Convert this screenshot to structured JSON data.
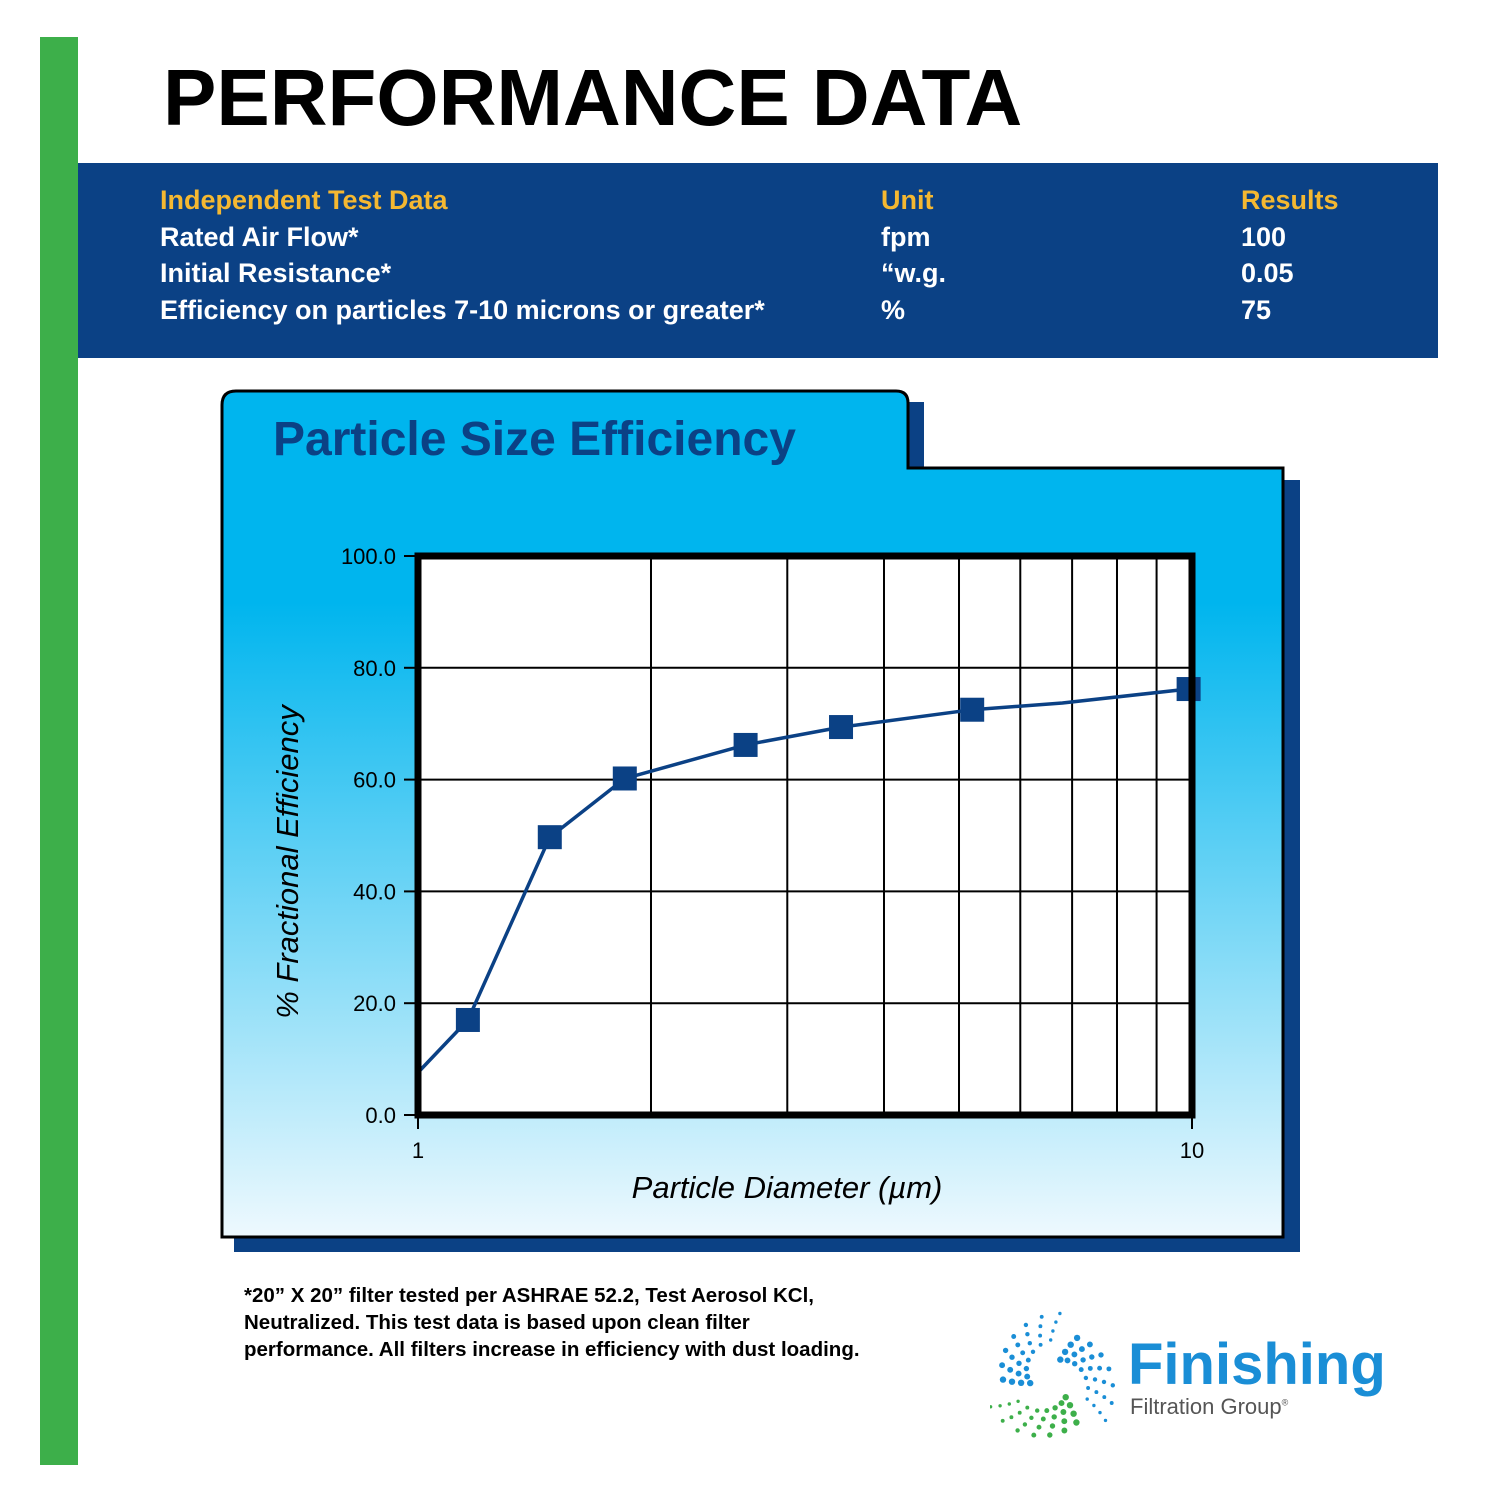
{
  "page_title": "PERFORMANCE DATA",
  "test_table": {
    "headers": [
      "Independent Test Data",
      "Unit",
      "Results"
    ],
    "rows": [
      [
        "Rated Air Flow*",
        "fpm",
        "100"
      ],
      [
        "Initial Resistance*",
        "“w.g.",
        "0.05"
      ],
      [
        "Efficiency on particles 7-10 microns or greater*",
        "%",
        "75"
      ]
    ]
  },
  "chart_data": {
    "type": "line",
    "title": "Particle Size Efficiency",
    "xlabel": "Particle Diameter (µm)",
    "ylabel": "% Fractional Efficiency",
    "x_scale": "log",
    "xlim": [
      1,
      10
    ],
    "ylim": [
      0,
      100
    ],
    "x_ticks": [
      1,
      10
    ],
    "x_tick_labels": [
      "1",
      "10"
    ],
    "y_ticks": [
      0,
      20,
      40,
      60,
      80,
      100
    ],
    "y_tick_labels": [
      "0.0",
      "20.0",
      "40.0",
      "60.0",
      "80.0",
      "100.0"
    ],
    "grid": true,
    "series": [
      {
        "x": [
          1,
          1.16,
          1.48,
          1.85,
          2.65,
          3.52,
          5.2,
          6.8,
          9.9
        ],
        "y": [
          7.6,
          17,
          49.7,
          60.2,
          66.2,
          69.4,
          72.5,
          73.7,
          76.2
        ],
        "marker_x": [
          1.16,
          1.48,
          1.85,
          2.65,
          3.52,
          5.2,
          9.9
        ],
        "marker_y": [
          17,
          49.7,
          60.2,
          66.2,
          69.4,
          72.5,
          76.2
        ],
        "color": "#0b4185"
      }
    ]
  },
  "footnote": "*20” X 20” filter tested per ASHRAE 52.2, Test Aerosol KCl, Neutralized. This test data is based upon clean filter performance. All filters increase in efficiency with dust loading.",
  "logo": {
    "name": "Finishing",
    "subtitle": "Filtration Group",
    "mark": "®"
  },
  "colors": {
    "green": "#3daf4a",
    "navy": "#0b4185",
    "gold": "#f5b831",
    "sky": "#00b5ee",
    "logo_blue": "#1a8ed6"
  }
}
